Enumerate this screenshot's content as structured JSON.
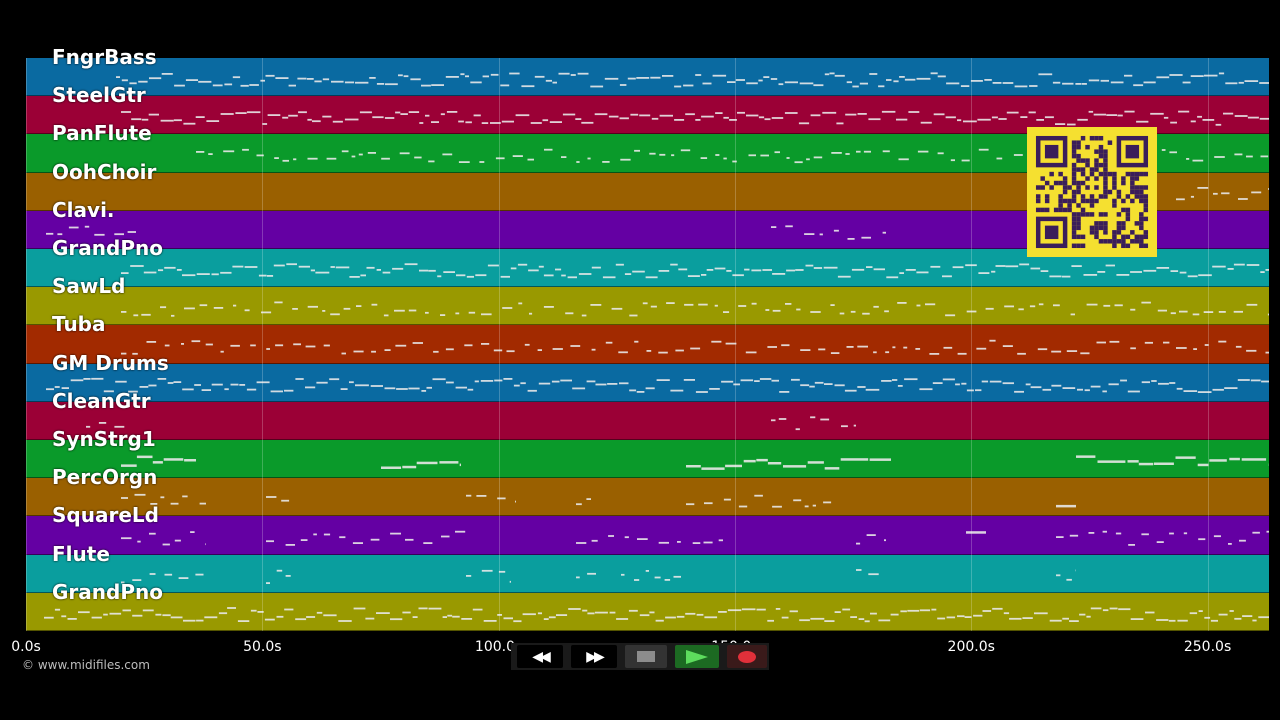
{
  "tracks": [
    {
      "name": "FngrBass",
      "color": "#0a6aa1"
    },
    {
      "name": "SteelGtr",
      "color": "#9b0036"
    },
    {
      "name": "PanFlute",
      "color": "#0a9a2a"
    },
    {
      "name": "OohChoir",
      "color": "#9a6000"
    },
    {
      "name": "Clavi.",
      "color": "#6400a3"
    },
    {
      "name": "GrandPno",
      "color": "#0a9e9e"
    },
    {
      "name": "SawLd",
      "color": "#999900"
    },
    {
      "name": "Tuba",
      "color": "#a22a00"
    },
    {
      "name": "GM Drums",
      "color": "#0a6aa1"
    },
    {
      "name": "CleanGtr",
      "color": "#9b0036"
    },
    {
      "name": "SynStrg1",
      "color": "#0a9a2a"
    },
    {
      "name": "PercOrgn",
      "color": "#9a6000"
    },
    {
      "name": "SquareLd",
      "color": "#6400a3"
    },
    {
      "name": "Flute",
      "color": "#0a9e9e"
    },
    {
      "name": "GrandPno",
      "color": "#999900"
    }
  ],
  "timeline": {
    "duration_s": 263,
    "ticks": [
      "0.0s",
      "50.0s",
      "100.0s",
      "150.0s",
      "200.0s",
      "250.0s"
    ],
    "tick_values": [
      0,
      50,
      100,
      150,
      200,
      250
    ]
  },
  "copyright": "© www.midifiles.com",
  "transport": [
    {
      "name": "rewind-button",
      "icon": "rewind-icon",
      "glyph": "◀◀"
    },
    {
      "name": "fast-forward-button",
      "icon": "fast-forward-icon",
      "glyph": "▶▶"
    },
    {
      "name": "stop-button",
      "icon": "stop-icon",
      "glyph": ""
    },
    {
      "name": "play-button",
      "icon": "play-icon",
      "glyph": ""
    },
    {
      "name": "record-button",
      "icon": "record-icon",
      "glyph": ""
    }
  ],
  "qr_code": {
    "icon": "qr-code-icon",
    "background": "#f5e030",
    "foreground": "#3a1e5a"
  }
}
